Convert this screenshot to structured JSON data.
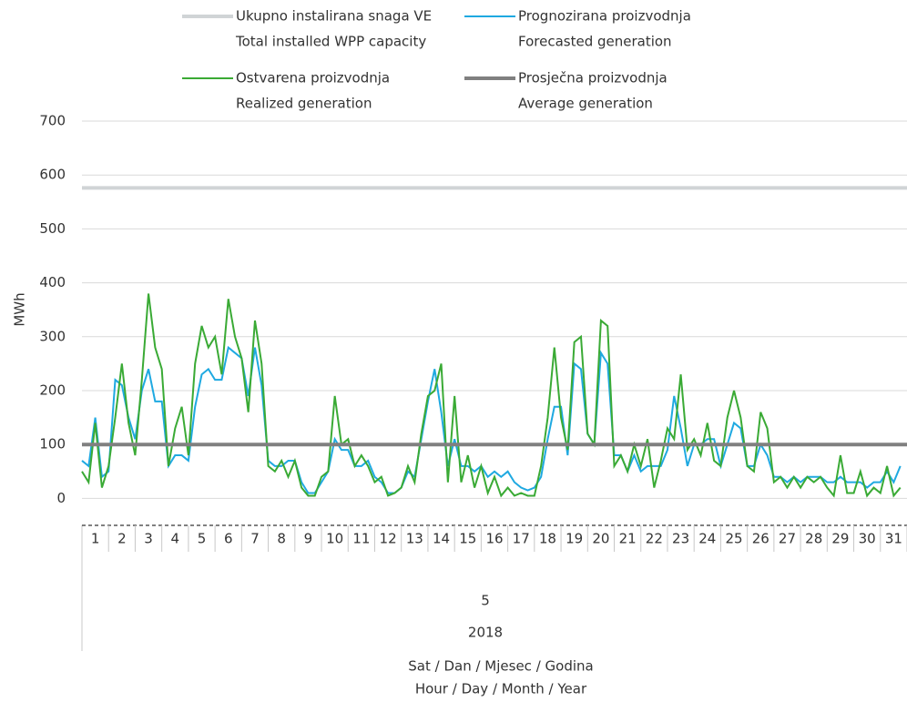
{
  "chart_data": {
    "type": "line",
    "ylabel": "MWh",
    "xlabel": "Sat / Dan / Mjesec / Godina",
    "xlabel_en": "Hour / Day / Month / Year",
    "month": "5",
    "year": "2018",
    "days": [
      "1",
      "2",
      "3",
      "4",
      "5",
      "6",
      "7",
      "8",
      "9",
      "10",
      "11",
      "12",
      "13",
      "14",
      "15",
      "16",
      "17",
      "18",
      "19",
      "20",
      "21",
      "22",
      "23",
      "24",
      "25",
      "26",
      "27",
      "28",
      "29",
      "30",
      "31"
    ],
    "xlim": [
      1,
      32
    ],
    "ylim": [
      -50,
      700
    ],
    "yticks": [
      0,
      100,
      200,
      300,
      400,
      500,
      600,
      700
    ],
    "grid": true,
    "x": [
      1,
      1.25,
      1.5,
      1.75,
      2,
      2.25,
      2.5,
      2.75,
      3,
      3.25,
      3.5,
      3.75,
      4,
      4.25,
      4.5,
      4.75,
      5,
      5.25,
      5.5,
      5.75,
      6,
      6.25,
      6.5,
      6.75,
      7,
      7.25,
      7.5,
      7.75,
      8,
      8.25,
      8.5,
      8.75,
      9,
      9.25,
      9.5,
      9.75,
      10,
      10.25,
      10.5,
      10.75,
      11,
      11.25,
      11.5,
      11.75,
      12,
      12.25,
      12.5,
      12.75,
      13,
      13.25,
      13.5,
      13.75,
      14,
      14.25,
      14.5,
      14.75,
      15,
      15.25,
      15.5,
      15.75,
      16,
      16.25,
      16.5,
      16.75,
      17,
      17.25,
      17.5,
      17.75,
      18,
      18.25,
      18.5,
      18.75,
      19,
      19.25,
      19.5,
      19.75,
      20,
      20.25,
      20.5,
      20.75,
      21,
      21.25,
      21.5,
      21.75,
      22,
      22.25,
      22.5,
      22.75,
      23,
      23.25,
      23.5,
      23.75,
      24,
      24.25,
      24.5,
      24.75,
      25,
      25.25,
      25.5,
      25.75,
      26,
      26.25,
      26.5,
      26.75,
      27,
      27.25,
      27.5,
      27.75,
      28,
      28.25,
      28.5,
      28.75,
      29,
      29.25,
      29.5,
      29.75,
      30,
      30.25,
      30.5,
      30.75,
      31,
      31.25,
      31.5,
      31.75
    ],
    "series": [
      {
        "name": "Ukupno instalirana snaga VE",
        "name_en": "Total installed WPP capacity",
        "color": "#d0d4d6",
        "value": 576
      },
      {
        "name": "Prognozirana proizvodnja",
        "name_en": "Forecasted generation",
        "color": "#1fa9e1",
        "values": [
          70,
          60,
          150,
          40,
          50,
          220,
          210,
          150,
          110,
          200,
          240,
          180,
          180,
          60,
          80,
          80,
          70,
          170,
          230,
          240,
          220,
          220,
          280,
          270,
          260,
          190,
          280,
          210,
          70,
          60,
          60,
          70,
          70,
          30,
          10,
          10,
          30,
          50,
          110,
          90,
          90,
          60,
          60,
          70,
          40,
          30,
          10,
          10,
          20,
          50,
          40,
          110,
          180,
          240,
          160,
          60,
          110,
          60,
          60,
          50,
          60,
          40,
          50,
          40,
          50,
          30,
          20,
          15,
          20,
          40,
          110,
          170,
          170,
          80,
          250,
          240,
          120,
          100,
          270,
          250,
          80,
          80,
          50,
          80,
          50,
          60,
          60,
          60,
          90,
          190,
          130,
          60,
          100,
          100,
          110,
          110,
          60,
          100,
          140,
          130,
          60,
          60,
          100,
          80,
          40,
          40,
          30,
          40,
          30,
          40,
          40,
          40,
          30,
          30,
          40,
          30,
          30,
          30,
          20,
          30,
          30,
          50,
          30,
          60
        ]
      },
      {
        "name": "Ostvarena proizvodnja",
        "name_en": "Realized generation",
        "color": "#3aaa35",
        "values": [
          50,
          30,
          140,
          20,
          60,
          150,
          250,
          140,
          80,
          220,
          380,
          280,
          240,
          60,
          130,
          170,
          80,
          250,
          320,
          280,
          300,
          230,
          370,
          300,
          260,
          160,
          330,
          250,
          60,
          50,
          70,
          40,
          70,
          20,
          5,
          5,
          40,
          50,
          190,
          100,
          110,
          60,
          80,
          60,
          30,
          40,
          5,
          10,
          20,
          60,
          30,
          120,
          190,
          200,
          250,
          30,
          190,
          30,
          80,
          20,
          60,
          10,
          40,
          5,
          20,
          5,
          10,
          5,
          5,
          60,
          150,
          280,
          150,
          90,
          290,
          300,
          120,
          100,
          330,
          320,
          60,
          80,
          50,
          100,
          60,
          110,
          20,
          70,
          130,
          110,
          230,
          90,
          110,
          80,
          140,
          70,
          60,
          150,
          200,
          150,
          60,
          50,
          160,
          130,
          30,
          40,
          20,
          40,
          20,
          40,
          30,
          40,
          20,
          5,
          80,
          10,
          10,
          50,
          5,
          20,
          10,
          60,
          5,
          20
        ]
      },
      {
        "name": "Prosječna proizvodnja",
        "name_en": "Average generation",
        "color": "#808080",
        "value": 100
      }
    ]
  }
}
